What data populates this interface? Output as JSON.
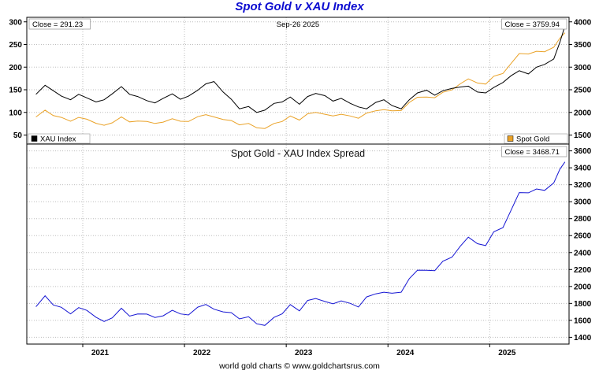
{
  "title": "Spot Gold v XAU Index",
  "footer": "world gold charts © www.goldchartsrus.com",
  "colors": {
    "title": "#0b0bd0",
    "xau": "#000000",
    "gold": "#eaa227",
    "spread": "#1515d3",
    "grid": "#bdbdbd",
    "border": "#000000"
  },
  "x_range": [
    2020.45,
    2025.78
  ],
  "x": [
    2020.54,
    2020.63,
    2020.71,
    2020.79,
    2020.88,
    2020.96,
    2021.04,
    2021.13,
    2021.21,
    2021.29,
    2021.38,
    2021.46,
    2021.54,
    2021.63,
    2021.71,
    2021.79,
    2021.88,
    2021.96,
    2022.04,
    2022.13,
    2022.21,
    2022.29,
    2022.38,
    2022.46,
    2022.54,
    2022.63,
    2022.71,
    2022.79,
    2022.88,
    2022.96,
    2023.04,
    2023.13,
    2023.21,
    2023.29,
    2023.38,
    2023.46,
    2023.54,
    2023.63,
    2023.71,
    2023.79,
    2023.88,
    2023.96,
    2024.04,
    2024.13,
    2024.21,
    2024.29,
    2024.38,
    2024.46,
    2024.54,
    2024.63,
    2024.71,
    2024.79,
    2024.88,
    2024.96,
    2025.04,
    2025.13,
    2025.21,
    2025.29,
    2025.38,
    2025.46,
    2025.54,
    2025.63,
    2025.69,
    2025.74
  ],
  "chart_data": [
    {
      "type": "line",
      "panel": "top",
      "annotations": {
        "left": "Close = 291.23",
        "center": "Sep-26  2025",
        "right": "Close = 3759.94"
      },
      "x_ticks": [
        2021,
        2022,
        2023,
        2024,
        2025
      ],
      "left_axis": {
        "ticks": [
          300,
          250,
          200,
          150,
          100,
          50
        ],
        "range": [
          30,
          310
        ]
      },
      "right_axis": {
        "ticks": [
          4000,
          3500,
          3000,
          2500,
          2000,
          1500
        ],
        "range": [
          1300,
          4100
        ]
      },
      "legend": [
        {
          "label": "XAU Index",
          "color": "#000000"
        },
        {
          "label": "Spot Gold",
          "color": "#eaa227"
        }
      ],
      "series": [
        {
          "name": "Spot Gold",
          "axis": "right",
          "color": "#eaa227",
          "values": [
            1900,
            2050,
            1930,
            1890,
            1805,
            1890,
            1850,
            1760,
            1715,
            1770,
            1900,
            1790,
            1810,
            1800,
            1755,
            1785,
            1860,
            1805,
            1800,
            1905,
            1950,
            1900,
            1845,
            1820,
            1725,
            1755,
            1660,
            1645,
            1755,
            1800,
            1920,
            1830,
            1970,
            2000,
            1960,
            1920,
            1960,
            1920,
            1870,
            1985,
            2035,
            2060,
            2035,
            2040,
            2220,
            2335,
            2340,
            2325,
            2445,
            2500,
            2630,
            2740,
            2650,
            2625,
            2800,
            2860,
            3080,
            3300,
            3290,
            3350,
            3340,
            3440,
            3640,
            3759.94
          ]
        },
        {
          "name": "XAU Index",
          "axis": "left",
          "color": "#000000",
          "values": [
            140,
            160,
            148,
            136,
            128,
            140,
            132,
            123,
            128,
            141,
            157,
            140,
            135,
            126,
            121,
            131,
            141,
            129,
            136,
            149,
            163,
            168,
            145,
            129,
            108,
            113,
            100,
            105,
            120,
            123,
            134,
            118,
            135,
            142,
            137,
            125,
            131,
            120,
            112,
            108,
            122,
            128,
            115,
            108,
            128,
            143,
            149,
            138,
            148,
            153,
            156,
            158,
            145,
            143,
            155,
            166,
            181,
            192,
            185,
            200,
            206,
            218,
            255,
            291.23
          ]
        }
      ]
    },
    {
      "type": "line",
      "panel": "bottom",
      "title": "Spot Gold  -  XAU Index Spread",
      "annotations": {
        "right": "Close = 3468.71"
      },
      "right_axis": {
        "ticks": [
          3600,
          3400,
          3200,
          3000,
          2800,
          2600,
          2400,
          2200,
          2000,
          1800,
          1600,
          1400
        ],
        "range": [
          1320,
          3680
        ]
      },
      "series": [
        {
          "name": "Spread",
          "axis": "right",
          "color": "#1515d3",
          "values": [
            1760,
            1890,
            1782,
            1754,
            1677,
            1750,
            1718,
            1637,
            1587,
            1629,
            1743,
            1650,
            1675,
            1674,
            1634,
            1654,
            1719,
            1676,
            1664,
            1756,
            1787,
            1732,
            1700,
            1691,
            1617,
            1642,
            1560,
            1540,
            1635,
            1677,
            1786,
            1712,
            1835,
            1858,
            1823,
            1795,
            1829,
            1800,
            1758,
            1877,
            1913,
            1932,
            1920,
            1932,
            2092,
            2192,
            2191,
            2187,
            2297,
            2347,
            2474,
            2582,
            2505,
            2482,
            2645,
            2694,
            2899,
            3108,
            3105,
            3150,
            3134,
            3222,
            3385,
            3468.71
          ]
        }
      ]
    }
  ]
}
